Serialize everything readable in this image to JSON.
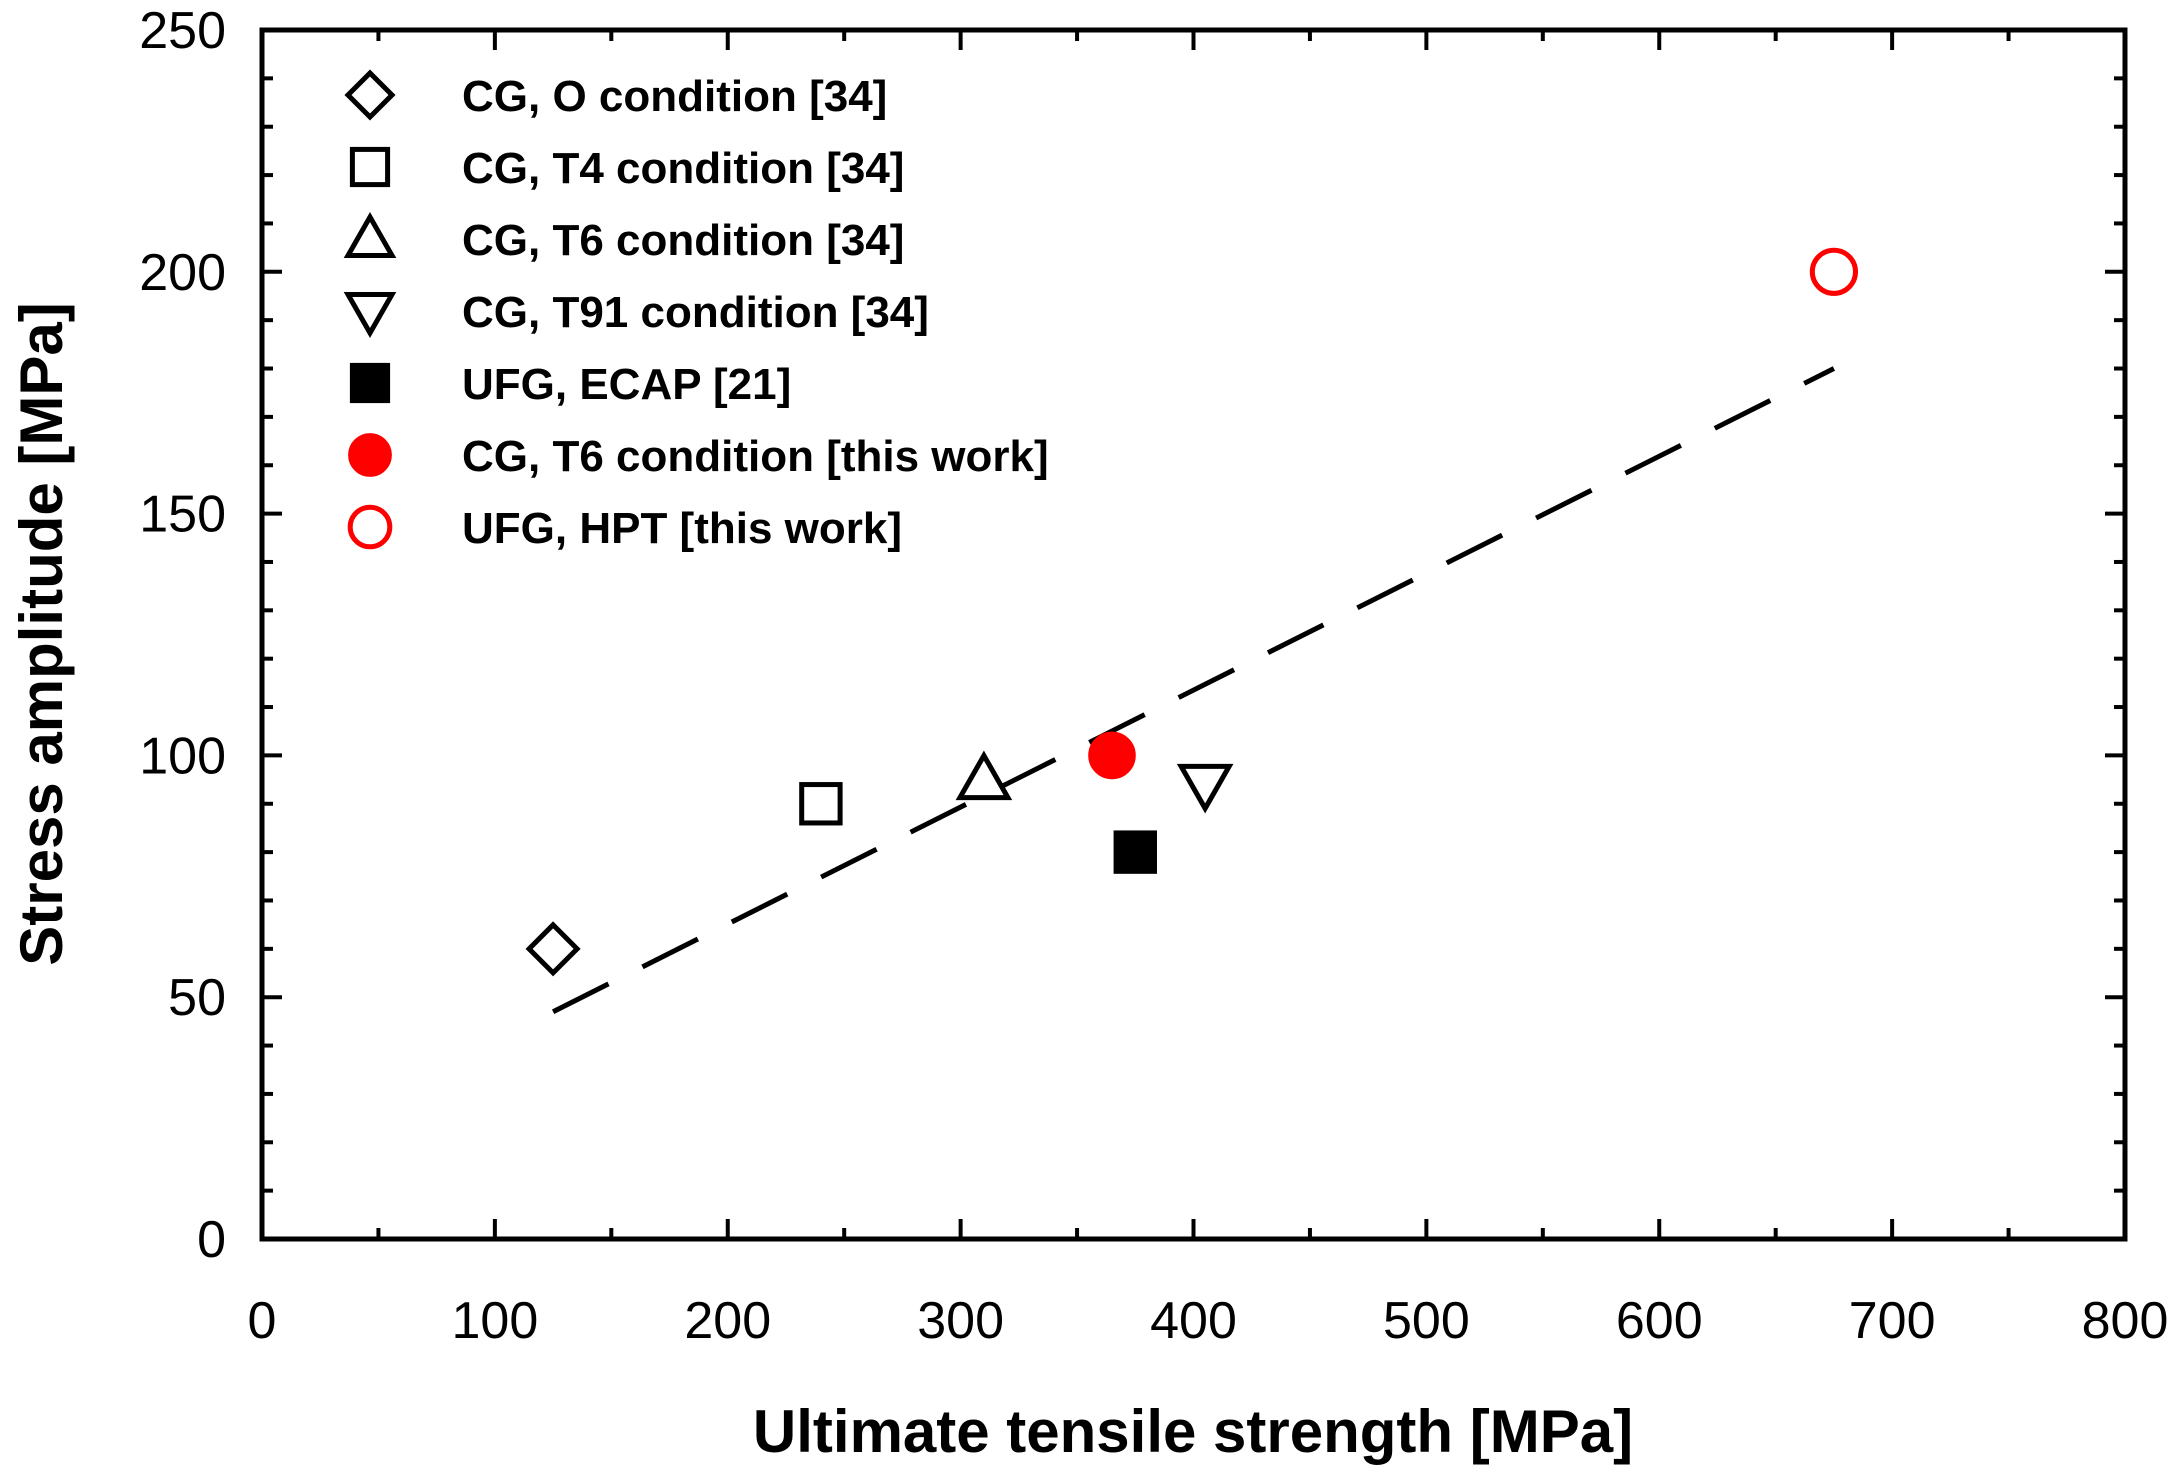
{
  "chart_data": {
    "type": "scatter",
    "title": "",
    "xlabel": "Ultimate tensile strength [MPa]",
    "ylabel": "Stress amplitude [MPa]",
    "xlim": [
      0,
      800
    ],
    "ylim": [
      0,
      250
    ],
    "x_ticks": [
      0,
      100,
      200,
      300,
      400,
      500,
      600,
      700,
      800
    ],
    "y_ticks": [
      0,
      50,
      100,
      150,
      200,
      250
    ],
    "x_tick_labels": [
      "0",
      "100",
      "200",
      "300",
      "400",
      "500",
      "600",
      "700",
      "800"
    ],
    "y_tick_labels": [
      "0",
      "50",
      "100",
      "150",
      "200",
      "250"
    ],
    "grid": false,
    "legend_position": "top-left",
    "series": [
      {
        "name": "CG, O condition [34]",
        "marker": "diamond-open",
        "color": "#000000",
        "points": [
          [
            125,
            60
          ]
        ]
      },
      {
        "name": "CG, T4 condition [34]",
        "marker": "square-open",
        "color": "#000000",
        "points": [
          [
            240,
            90
          ]
        ]
      },
      {
        "name": "CG, T6 condition [34]",
        "marker": "triangle-up-open",
        "color": "#000000",
        "points": [
          [
            310,
            95
          ]
        ]
      },
      {
        "name": "CG, T91 condition [34]",
        "marker": "triangle-down-open",
        "color": "#000000",
        "points": [
          [
            405,
            94
          ]
        ]
      },
      {
        "name": "UFG, ECAP [21]",
        "marker": "square-filled",
        "color": "#000000",
        "points": [
          [
            375,
            80
          ]
        ]
      },
      {
        "name": "CG, T6 condition [this work]",
        "marker": "circle-filled",
        "color": "#ff0000",
        "points": [
          [
            365,
            100
          ]
        ]
      },
      {
        "name": "UFG, HPT [this work]",
        "marker": "circle-open",
        "color": "#ff0000",
        "points": [
          [
            675,
            200
          ]
        ]
      }
    ],
    "trend_line": {
      "style": "dashed",
      "color": "#000000",
      "x": [
        125,
        675
      ],
      "y": [
        47,
        180
      ]
    }
  }
}
